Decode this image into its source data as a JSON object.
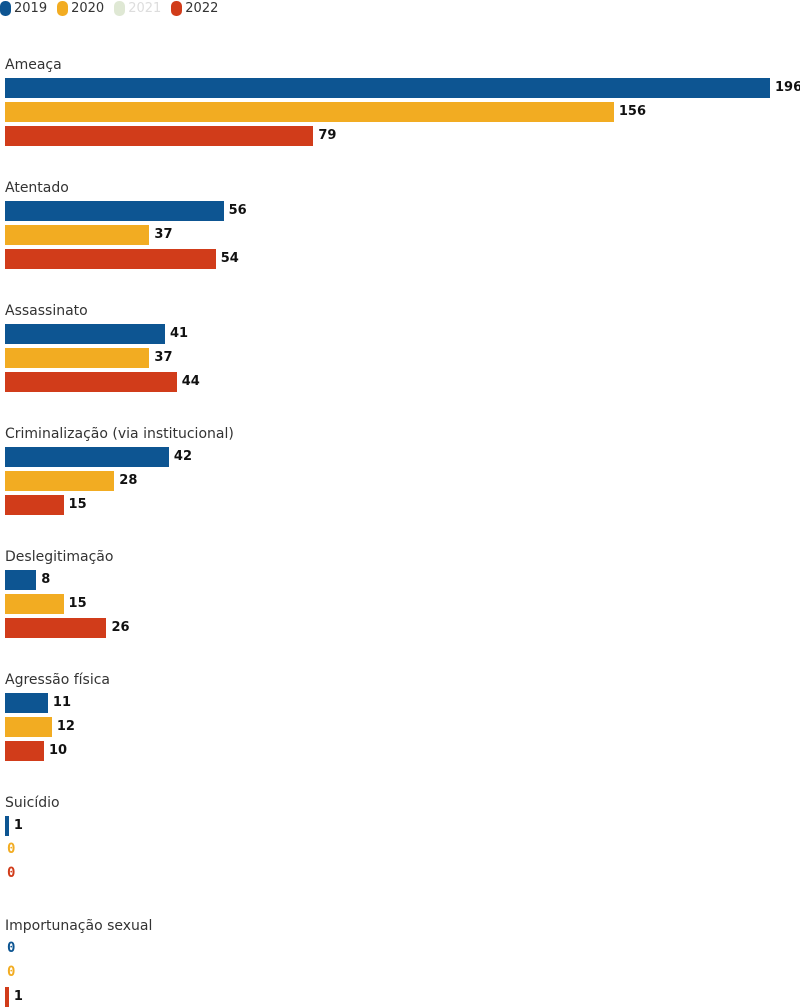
{
  "chart_data": {
    "type": "bar",
    "orientation": "horizontal",
    "legend": [
      {
        "name": "2019",
        "color": "#0d5592",
        "active": true
      },
      {
        "name": "2020",
        "color": "#f2ac22",
        "active": true
      },
      {
        "name": "2021",
        "color": "#dfe8d4",
        "active": false
      },
      {
        "name": "2022",
        "color": "#d13c1a",
        "active": true
      }
    ],
    "categories": [
      "Ameaça",
      "Atentado",
      "Assassinato",
      "Criminalização (via institucional)",
      "Deslegitimação",
      "Agressão física",
      "Suicídio",
      "Importunação sexual"
    ],
    "series": [
      {
        "name": "2019",
        "color": "#0d5592",
        "values": [
          196,
          56,
          41,
          42,
          8,
          11,
          1,
          0
        ]
      },
      {
        "name": "2020",
        "color": "#f2ac22",
        "values": [
          156,
          37,
          37,
          28,
          15,
          12,
          0,
          0
        ]
      },
      {
        "name": "2022",
        "color": "#d13c1a",
        "values": [
          79,
          54,
          44,
          15,
          26,
          10,
          0,
          1
        ]
      }
    ],
    "xlim": [
      0,
      196
    ]
  }
}
